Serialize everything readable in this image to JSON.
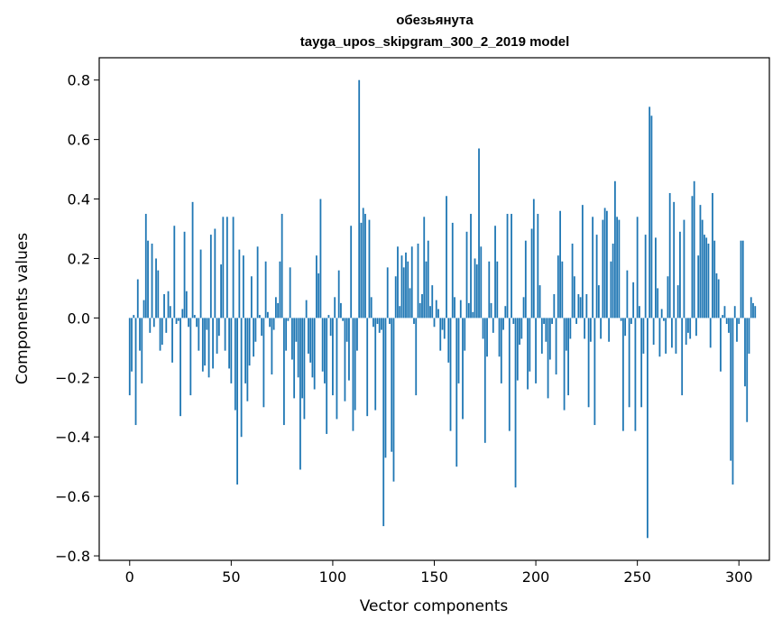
{
  "chart_data": {
    "type": "bar",
    "title": "обезьянута",
    "subtitle": "tayga_upos_skipgram_300_2_2019 model",
    "xlabel": "Vector components",
    "ylabel": "Components values",
    "xlim": [
      -15,
      315
    ],
    "ylim": [
      -0.815,
      0.875
    ],
    "xticks": [
      0,
      50,
      100,
      150,
      200,
      250,
      300
    ],
    "yticks": [
      -0.8,
      -0.6,
      -0.4,
      -0.2,
      0.0,
      0.2,
      0.4,
      0.6,
      0.8
    ],
    "ytick_labels": [
      "−0.8",
      "−0.6",
      "−0.4",
      "−0.2",
      "0.0",
      "0.2",
      "0.4",
      "0.6",
      "0.8"
    ],
    "grid": false,
    "bar_color": "#1f77b4",
    "values": [
      -0.26,
      -0.18,
      0.01,
      -0.36,
      0.13,
      -0.11,
      -0.22,
      0.06,
      0.35,
      0.26,
      -0.05,
      0.25,
      -0.03,
      0.2,
      0.16,
      -0.11,
      -0.09,
      0.08,
      -0.05,
      0.09,
      0.04,
      -0.15,
      0.31,
      -0.02,
      -0.01,
      -0.33,
      0.03,
      0.29,
      0.09,
      -0.03,
      -0.26,
      0.39,
      0.01,
      -0.03,
      -0.11,
      0.23,
      -0.18,
      -0.16,
      -0.04,
      -0.2,
      0.28,
      -0.17,
      0.3,
      -0.12,
      -0.06,
      0.18,
      0.34,
      -0.11,
      0.34,
      -0.17,
      -0.22,
      0.34,
      -0.31,
      -0.56,
      0.23,
      -0.4,
      0.21,
      -0.22,
      -0.28,
      -0.16,
      0.14,
      -0.13,
      -0.08,
      0.24,
      0.01,
      -0.06,
      -0.3,
      0.19,
      0.02,
      -0.03,
      -0.19,
      -0.04,
      0.07,
      0.05,
      0.19,
      0.35,
      -0.36,
      -0.11,
      -0.01,
      0.17,
      -0.14,
      -0.27,
      -0.08,
      -0.2,
      -0.51,
      -0.27,
      -0.34,
      0.06,
      -0.12,
      -0.15,
      -0.2,
      -0.24,
      0.21,
      0.15,
      0.4,
      -0.18,
      -0.22,
      -0.39,
      0.01,
      -0.06,
      -0.26,
      0.07,
      -0.34,
      0.16,
      0.05,
      -0.01,
      -0.28,
      -0.08,
      -0.21,
      0.31,
      -0.38,
      -0.31,
      -0.11,
      0.8,
      0.32,
      0.37,
      0.35,
      -0.33,
      0.33,
      0.07,
      -0.03,
      -0.31,
      -0.02,
      -0.05,
      -0.04,
      -0.7,
      -0.47,
      0.17,
      -0.02,
      -0.45,
      -0.55,
      0.14,
      0.24,
      0.04,
      0.21,
      0.17,
      0.22,
      0.19,
      0.1,
      0.24,
      -0.02,
      -0.26,
      0.25,
      0.05,
      0.08,
      0.34,
      0.19,
      0.26,
      0.04,
      0.11,
      -0.03,
      0.06,
      0.03,
      -0.11,
      -0.04,
      -0.07,
      0.41,
      -0.15,
      -0.38,
      0.32,
      0.07,
      -0.5,
      -0.22,
      0.06,
      -0.34,
      -0.11,
      0.29,
      0.05,
      0.35,
      0.02,
      0.2,
      0.18,
      0.57,
      0.24,
      -0.07,
      -0.42,
      -0.13,
      0.19,
      0.05,
      -0.05,
      0.31,
      0.19,
      -0.13,
      -0.22,
      -0.04,
      0.04,
      0.35,
      -0.38,
      0.35,
      -0.02,
      -0.57,
      -0.21,
      -0.09,
      -0.07,
      0.07,
      0.26,
      -0.24,
      -0.18,
      0.3,
      0.4,
      -0.22,
      0.35,
      0.11,
      -0.12,
      -0.02,
      -0.08,
      -0.27,
      -0.14,
      -0.02,
      0.08,
      -0.19,
      0.21,
      0.36,
      0.19,
      -0.31,
      -0.11,
      -0.26,
      -0.07,
      0.25,
      0.14,
      -0.02,
      0.08,
      0.07,
      0.38,
      -0.07,
      0.08,
      -0.3,
      -0.08,
      0.34,
      -0.36,
      0.28,
      0.11,
      -0.07,
      0.33,
      0.37,
      0.36,
      -0.08,
      0.19,
      0.25,
      0.46,
      0.34,
      0.33,
      -0.01,
      -0.38,
      -0.06,
      0.16,
      -0.3,
      -0.02,
      0.12,
      -0.38,
      0.34,
      0.04,
      -0.3,
      -0.12,
      0.28,
      -0.74,
      0.71,
      0.68,
      -0.09,
      0.27,
      0.1,
      -0.13,
      0.03,
      -0.01,
      -0.12,
      0.14,
      0.42,
      -0.1,
      0.39,
      -0.12,
      0.11,
      0.29,
      -0.26,
      0.33,
      -0.09,
      -0.05,
      -0.07,
      0.41,
      0.46,
      -0.06,
      0.21,
      0.38,
      0.33,
      0.28,
      0.27,
      0.25,
      -0.1,
      0.42,
      0.26,
      0.15,
      0.13,
      -0.18,
      0.01,
      0.04,
      -0.02,
      -0.05,
      -0.48,
      -0.56,
      0.04,
      -0.08,
      -0.02,
      0.26,
      0.26,
      -0.23,
      -0.35,
      -0.12,
      0.07,
      0.05,
      0.04
    ]
  }
}
